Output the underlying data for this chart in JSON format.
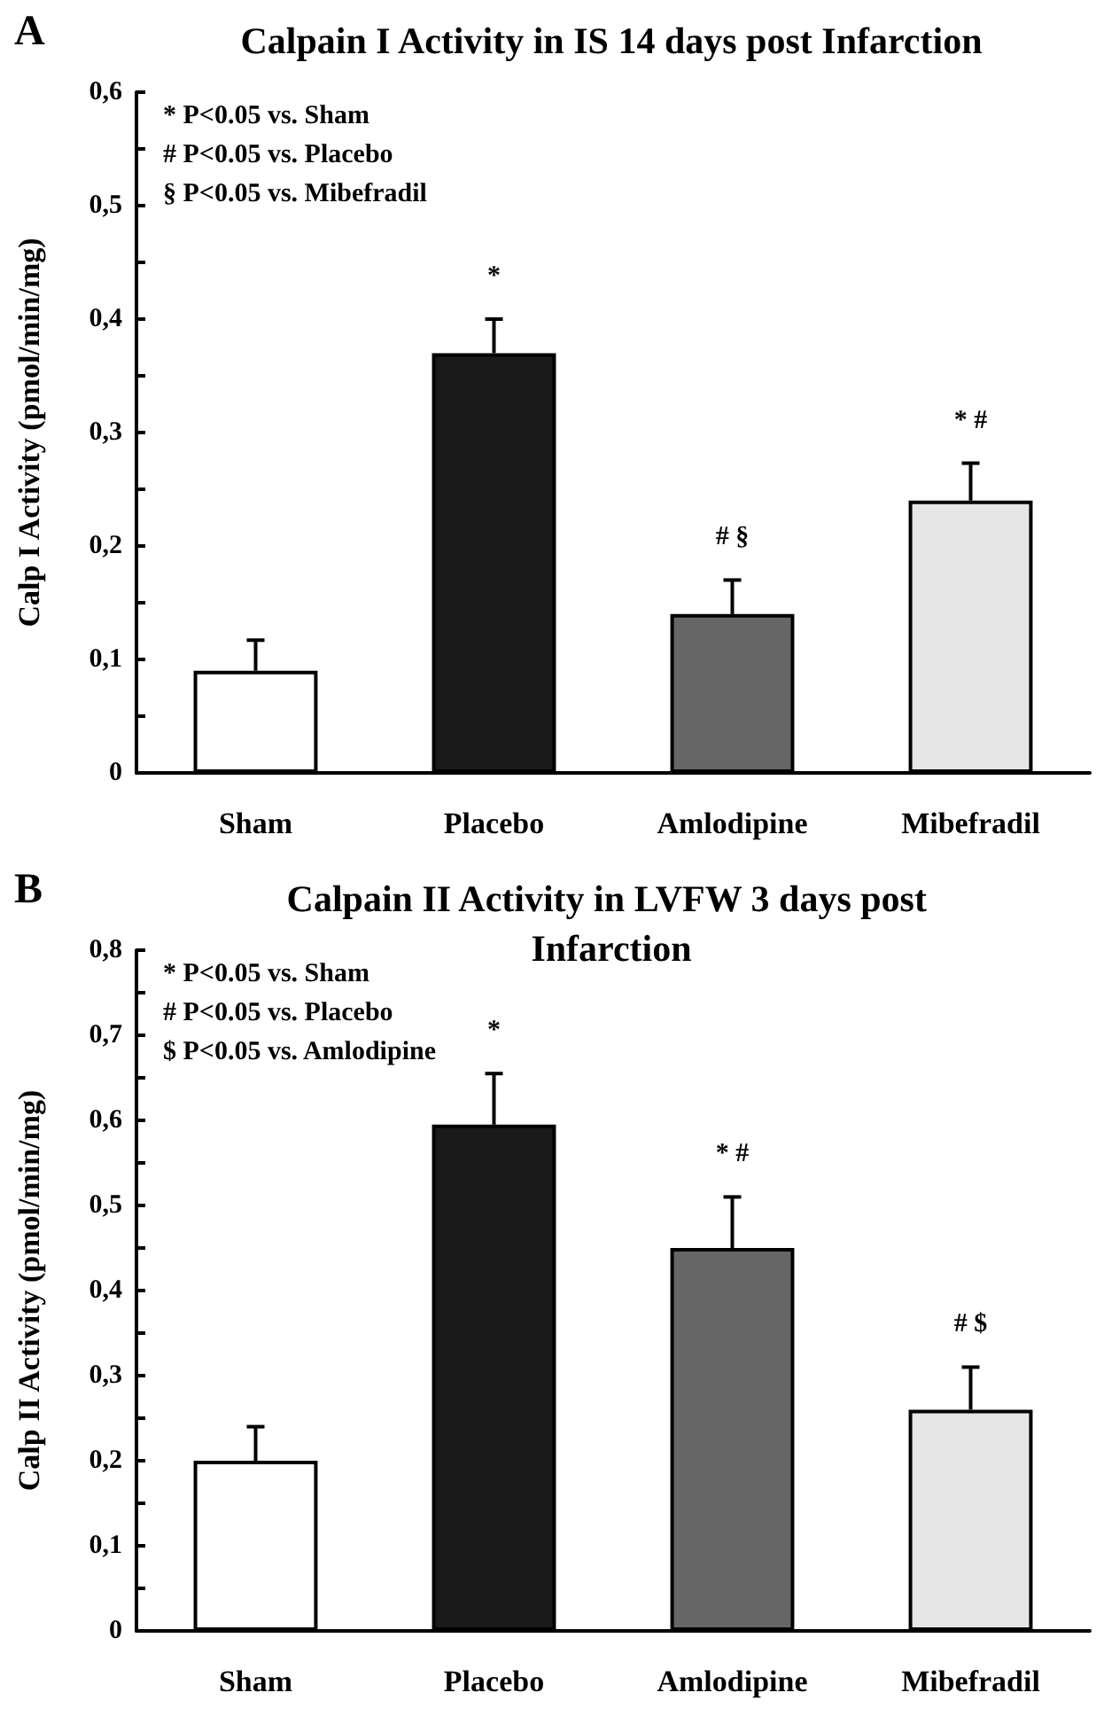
{
  "chart_data": [
    {
      "type": "bar",
      "title": "Calpain I Activity in IS 14 days post Infarction",
      "ylabel": "Calp I Activity (pmol/min/mg)",
      "categories": [
        "Sham",
        "Placebo",
        "Amlodipine",
        "Mibefradil"
      ],
      "values": [
        0.09,
        0.37,
        0.14,
        0.24
      ],
      "errors": [
        0.027,
        0.03,
        0.03,
        0.033
      ],
      "colors": [
        "#ffffff",
        "#1a1a1a",
        "#666666",
        "#e6e6e6"
      ],
      "ylim": [
        0,
        0.6
      ],
      "yticks": [
        {
          "value": 0,
          "label": "0"
        },
        {
          "value": 0.1,
          "label": "0,1"
        },
        {
          "value": 0.2,
          "label": "0,2"
        },
        {
          "value": 0.3,
          "label": "0,3"
        },
        {
          "value": 0.4,
          "label": "0,4"
        },
        {
          "value": 0.5,
          "label": "0,5"
        },
        {
          "value": 0.6,
          "label": "0,6"
        }
      ],
      "grid": false,
      "annotations": [
        "A",
        "* P<0.05 vs. Sham",
        "# P<0.05 vs. Placebo",
        "§ P<0.05 vs. Mibefradil",
        {
          "text": "*",
          "x": "Placebo",
          "y": 0.37
        },
        {
          "text": "# §",
          "x": "Amlodipine",
          "y": 0.14
        },
        {
          "text": "* #",
          "x": "Mibefradil",
          "y": 0.24
        }
      ]
    },
    {
      "type": "bar",
      "title": "Calpain II Activity in LVFW 3 days post Infarction",
      "ylabel": "Calp II Activity (pmol/min/mg)",
      "categories": [
        "Sham",
        "Placebo",
        "Amlodipine",
        "Mibefradil"
      ],
      "values": [
        0.2,
        0.595,
        0.45,
        0.26
      ],
      "errors": [
        0.04,
        0.06,
        0.06,
        0.05
      ],
      "colors": [
        "#ffffff",
        "#1a1a1a",
        "#666666",
        "#e6e6e6"
      ],
      "ylim": [
        0,
        0.8
      ],
      "yticks": [
        {
          "value": 0,
          "label": "0"
        },
        {
          "value": 0.1,
          "label": "0,1"
        },
        {
          "value": 0.2,
          "label": "0,2"
        },
        {
          "value": 0.3,
          "label": "0,3"
        },
        {
          "value": 0.4,
          "label": "0,4"
        },
        {
          "value": 0.5,
          "label": "0,5"
        },
        {
          "value": 0.6,
          "label": "0,6"
        },
        {
          "value": 0.7,
          "label": "0,7"
        },
        {
          "value": 0.8,
          "label": "0,8"
        }
      ],
      "grid": false,
      "annotations": [
        "B",
        "* P<0.05 vs. Sham",
        "# P<0.05 vs. Placebo",
        "$ P<0.05 vs. Amlodipine",
        {
          "text": "*",
          "x": "Placebo",
          "y": 0.595
        },
        {
          "text": "* #",
          "x": "Amlodipine",
          "y": 0.45
        },
        {
          "text": "# $",
          "x": "Mibefradil",
          "y": 0.26
        }
      ]
    }
  ]
}
